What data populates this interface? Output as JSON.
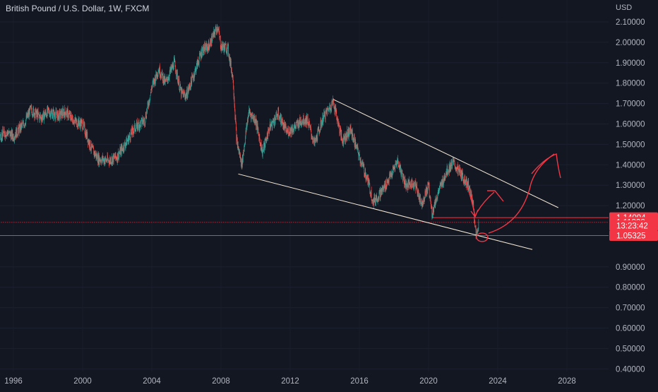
{
  "header": {
    "title": "British Pound / U.S. Dollar, 1W, FXCM",
    "currency": "USD"
  },
  "chart_data": {
    "type": "candlestick",
    "title": "British Pound / U.S. Dollar, 1W, FXCM",
    "ylabel": "USD",
    "ylim": [
      0.36,
      2.18
    ],
    "xlim": [
      1993.2,
      2031.0
    ],
    "y_ticks": [
      "2.10000",
      "2.00000",
      "1.90000",
      "1.80000",
      "1.70000",
      "1.60000",
      "1.50000",
      "1.40000",
      "1.30000",
      "1.20000",
      "0.90000",
      "0.80000",
      "0.70000",
      "0.60000",
      "0.50000",
      "0.40000"
    ],
    "x_ticks": [
      "1996",
      "2000",
      "2004",
      "2008",
      "2012",
      "2016",
      "2020",
      "2024",
      "2028"
    ],
    "colors": {
      "up": "#26a69a",
      "down": "#ef5350",
      "background": "#131722",
      "drawing": "#f5e9d7",
      "level": "#f23645"
    },
    "price_path": [
      [
        1993.2,
        1.58
      ],
      [
        1994.0,
        1.55
      ],
      [
        1994.8,
        1.52
      ],
      [
        1995.6,
        1.56
      ],
      [
        1996.0,
        1.54
      ],
      [
        1996.6,
        1.6
      ],
      [
        1997.0,
        1.67
      ],
      [
        1997.6,
        1.63
      ],
      [
        1998.0,
        1.66
      ],
      [
        1998.6,
        1.64
      ],
      [
        1999.0,
        1.66
      ],
      [
        1999.6,
        1.61
      ],
      [
        2000.0,
        1.6
      ],
      [
        2000.5,
        1.48
      ],
      [
        2000.9,
        1.43
      ],
      [
        2001.5,
        1.42
      ],
      [
        2002.0,
        1.44
      ],
      [
        2002.6,
        1.52
      ],
      [
        2003.0,
        1.58
      ],
      [
        2003.6,
        1.62
      ],
      [
        2004.0,
        1.78
      ],
      [
        2004.4,
        1.87
      ],
      [
        2004.8,
        1.8
      ],
      [
        2005.3,
        1.9
      ],
      [
        2005.7,
        1.75
      ],
      [
        2006.0,
        1.74
      ],
      [
        2006.5,
        1.86
      ],
      [
        2006.9,
        1.96
      ],
      [
        2007.3,
        1.98
      ],
      [
        2007.8,
        2.08
      ],
      [
        2008.0,
        1.98
      ],
      [
        2008.4,
        1.97
      ],
      [
        2008.7,
        1.82
      ],
      [
        2008.9,
        1.52
      ],
      [
        2009.2,
        1.4
      ],
      [
        2009.6,
        1.66
      ],
      [
        2010.0,
        1.62
      ],
      [
        2010.4,
        1.46
      ],
      [
        2010.8,
        1.58
      ],
      [
        2011.3,
        1.65
      ],
      [
        2011.8,
        1.56
      ],
      [
        2012.2,
        1.58
      ],
      [
        2012.7,
        1.62
      ],
      [
        2013.0,
        1.62
      ],
      [
        2013.4,
        1.5
      ],
      [
        2013.9,
        1.63
      ],
      [
        2014.5,
        1.71
      ],
      [
        2015.0,
        1.52
      ],
      [
        2015.5,
        1.57
      ],
      [
        2016.0,
        1.44
      ],
      [
        2016.5,
        1.32
      ],
      [
        2016.8,
        1.22
      ],
      [
        2017.3,
        1.27
      ],
      [
        2017.9,
        1.36
      ],
      [
        2018.2,
        1.42
      ],
      [
        2018.7,
        1.3
      ],
      [
        2019.2,
        1.31
      ],
      [
        2019.6,
        1.21
      ],
      [
        2020.0,
        1.3
      ],
      [
        2020.2,
        1.16
      ],
      [
        2020.5,
        1.25
      ],
      [
        2021.0,
        1.36
      ],
      [
        2021.4,
        1.41
      ],
      [
        2021.9,
        1.35
      ],
      [
        2022.3,
        1.3
      ],
      [
        2022.6,
        1.2
      ],
      [
        2022.75,
        1.04
      ],
      [
        2022.9,
        1.118
      ]
    ],
    "price_labels": [
      {
        "value": 1.14094,
        "text": "1.14094"
      },
      {
        "value": 1.11828,
        "text": "1.11828"
      },
      {
        "value": 1.102,
        "text": "13:23:42"
      },
      {
        "value": 1.05325,
        "text": "1.05325"
      }
    ],
    "annotations": {
      "upper_trendline": [
        [
          2014.5,
          1.72
        ],
        [
          2027.5,
          1.19
        ]
      ],
      "lower_trendline": [
        [
          2009.0,
          1.355
        ],
        [
          2026.0,
          0.985
        ]
      ],
      "support_line": [
        [
          2020.2,
          1.14094
        ],
        [
          2031.0,
          1.14094
        ]
      ],
      "level_line": [
        [
          1993.2,
          1.05325
        ],
        [
          2031.0,
          1.05325
        ]
      ],
      "dotted_line": [
        [
          1993.2,
          1.11828
        ],
        [
          2031.0,
          1.11828
        ]
      ]
    }
  }
}
